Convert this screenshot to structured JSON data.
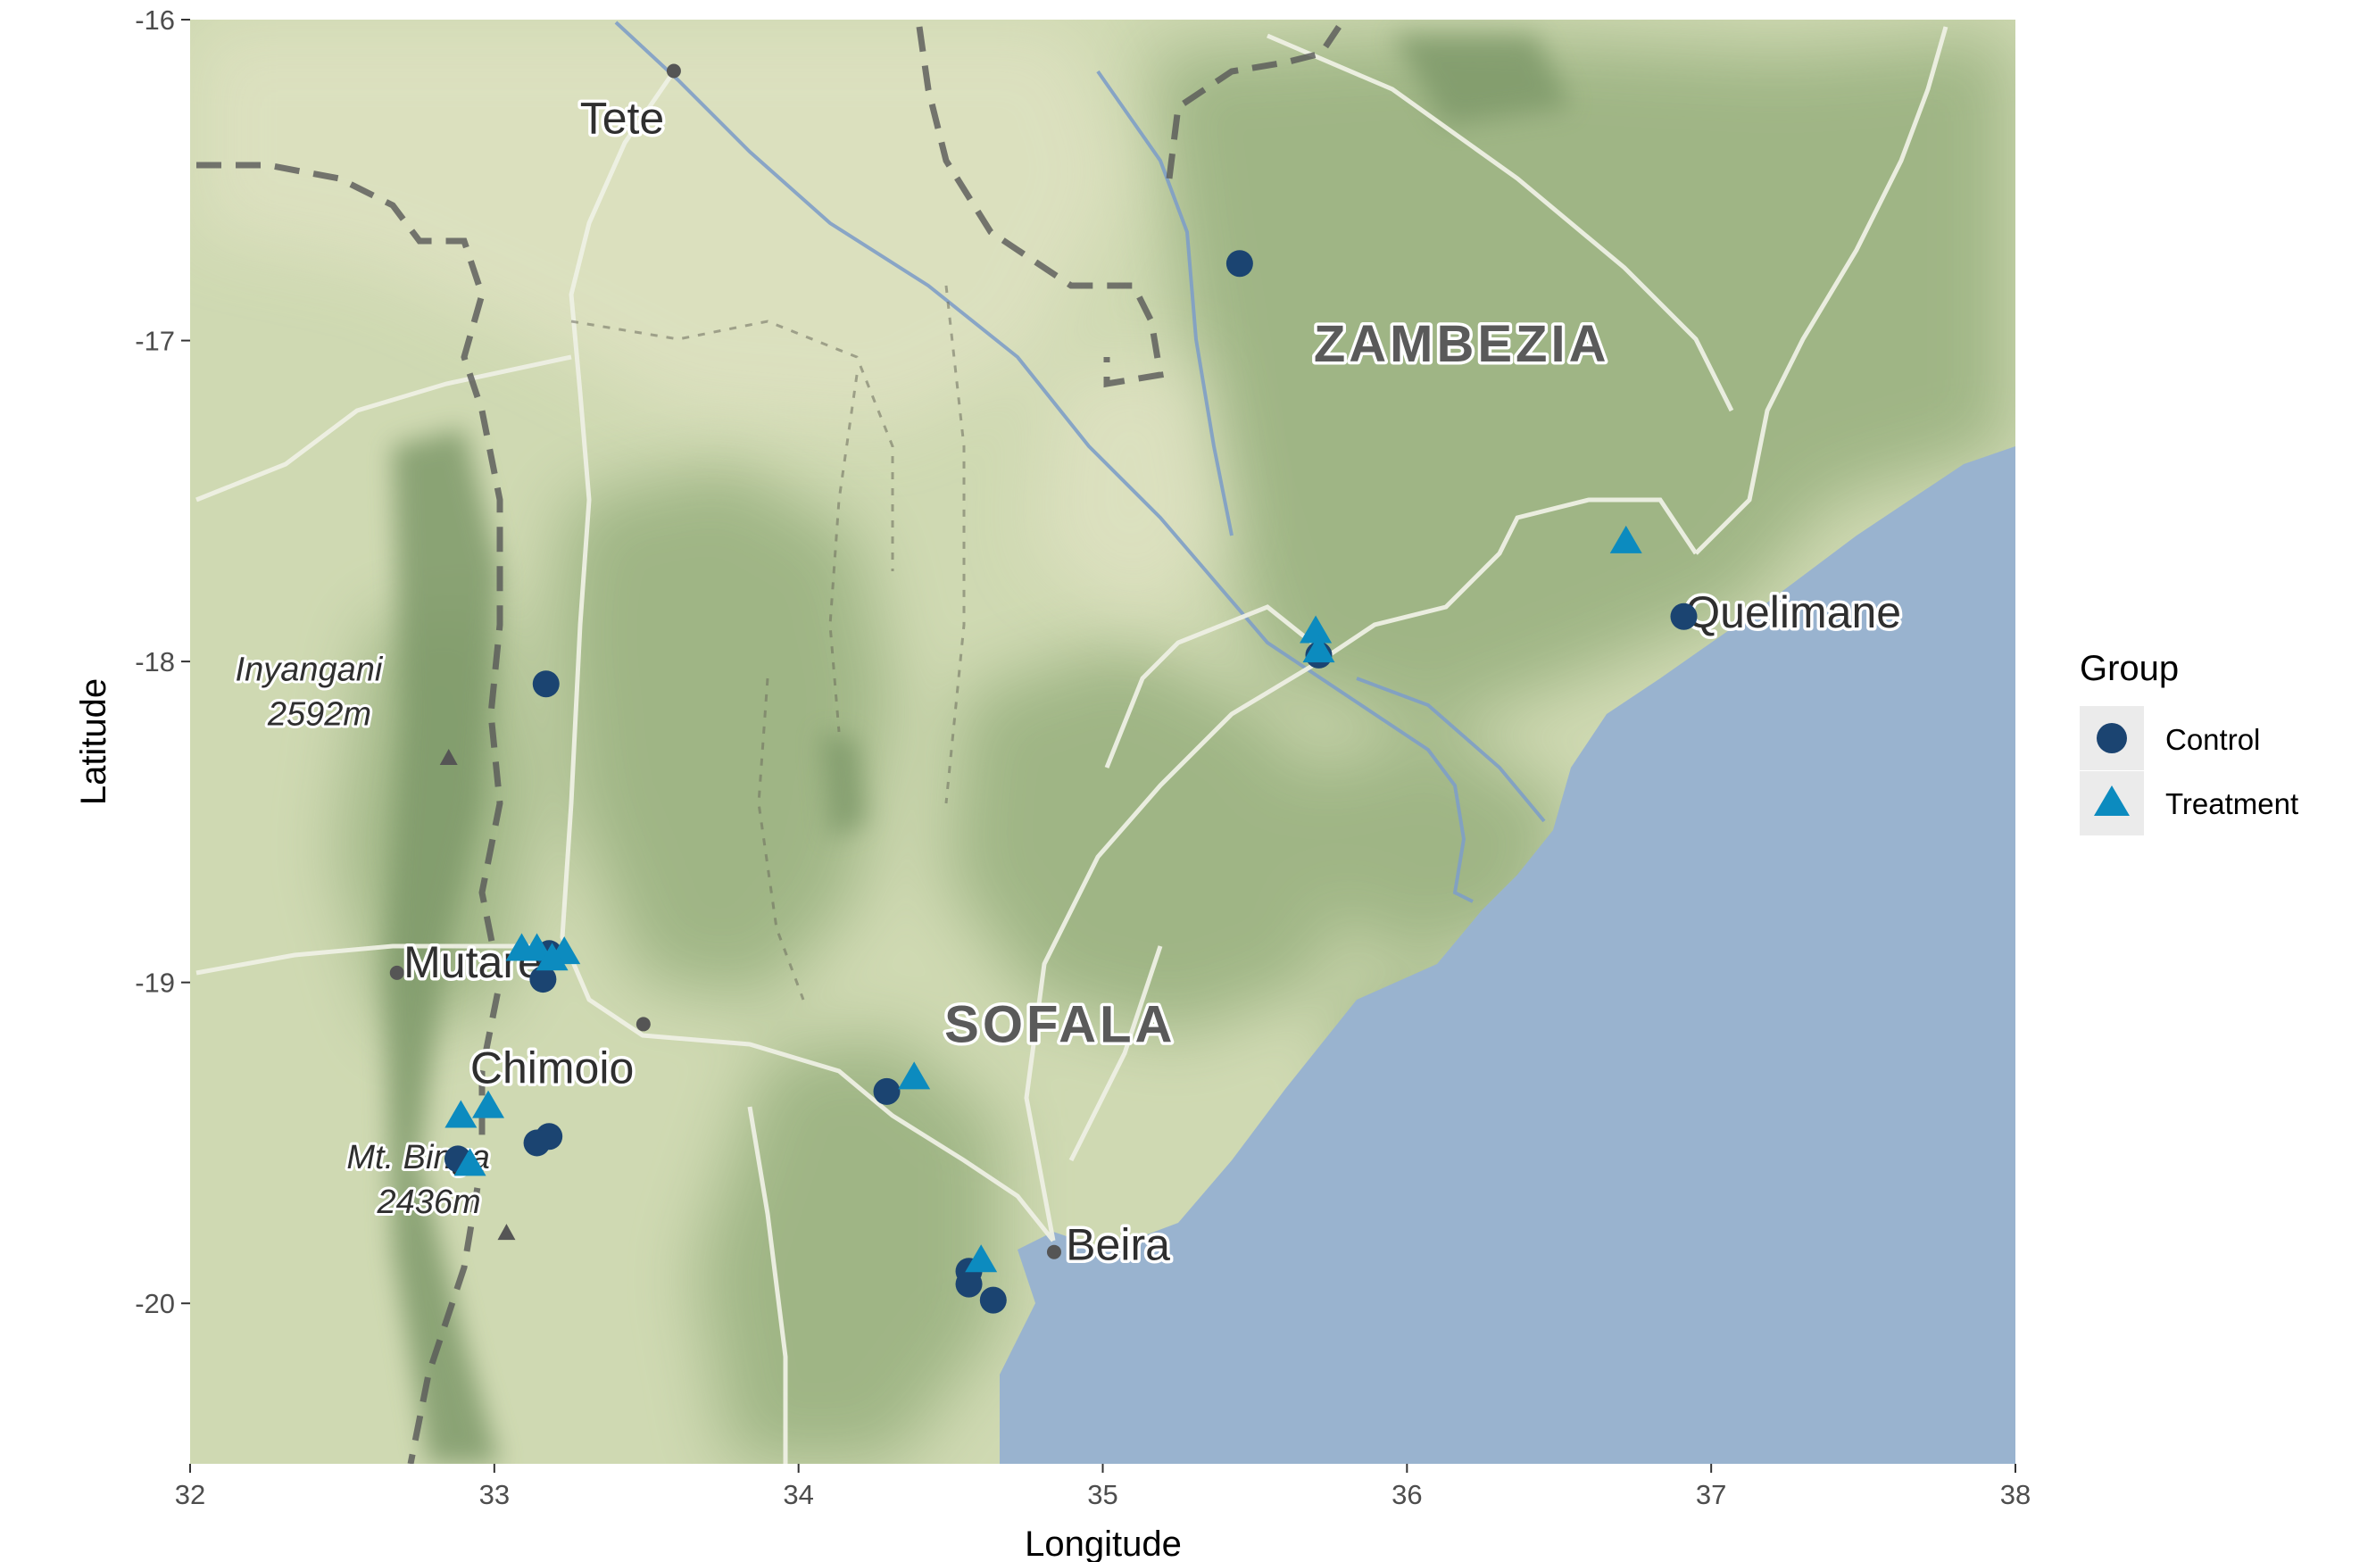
{
  "chart_data": {
    "type": "scatter",
    "title": "",
    "xlabel": "Longitude",
    "ylabel": "Latitude",
    "xlim": [
      32,
      38
    ],
    "ylim": [
      -20.5,
      -16
    ],
    "x_ticks": [
      32,
      33,
      34,
      35,
      36,
      37,
      38
    ],
    "y_ticks": [
      -20,
      -19,
      -18,
      -17,
      -16
    ],
    "x_tick_labels": [
      "32",
      "33",
      "34",
      "35",
      "36",
      "37",
      "38"
    ],
    "y_tick_labels": [
      "-20",
      "-19",
      "-18",
      "-17",
      "-16"
    ],
    "grid": false,
    "legend": {
      "title": "Group",
      "placement": "right",
      "entries": [
        {
          "label": "Control",
          "shape": "circle",
          "color": "#1b4471"
        },
        {
          "label": "Treatment",
          "shape": "triangle",
          "color": "#0c8bbf"
        }
      ]
    },
    "series": [
      {
        "name": "Control",
        "shape": "circle",
        "color": "#1b4471",
        "points": [
          {
            "x": 35.45,
            "y": -16.76
          },
          {
            "x": 33.17,
            "y": -18.07
          },
          {
            "x": 35.71,
            "y": -17.98
          },
          {
            "x": 36.91,
            "y": -17.86
          },
          {
            "x": 33.18,
            "y": -18.91
          },
          {
            "x": 33.16,
            "y": -18.99
          },
          {
            "x": 34.29,
            "y": -19.34
          },
          {
            "x": 33.18,
            "y": -19.48
          },
          {
            "x": 33.14,
            "y": -19.5
          },
          {
            "x": 32.88,
            "y": -19.55
          },
          {
            "x": 34.56,
            "y": -19.9
          },
          {
            "x": 34.56,
            "y": -19.94
          },
          {
            "x": 34.64,
            "y": -19.99
          }
        ]
      },
      {
        "name": "Treatment",
        "shape": "triangle",
        "color": "#0c8bbf",
        "points": [
          {
            "x": 36.72,
            "y": -17.63
          },
          {
            "x": 35.7,
            "y": -17.91
          },
          {
            "x": 35.71,
            "y": -17.97
          },
          {
            "x": 33.09,
            "y": -18.9
          },
          {
            "x": 33.14,
            "y": -18.9
          },
          {
            "x": 33.23,
            "y": -18.91
          },
          {
            "x": 33.19,
            "y": -18.93
          },
          {
            "x": 34.38,
            "y": -19.3
          },
          {
            "x": 32.98,
            "y": -19.39
          },
          {
            "x": 32.89,
            "y": -19.42
          },
          {
            "x": 32.92,
            "y": -19.57
          },
          {
            "x": 34.6,
            "y": -19.87
          }
        ]
      }
    ]
  },
  "map": {
    "place_labels": [
      {
        "text": "Tete",
        "lon": 33.42,
        "lat": -16.31
      },
      {
        "text": "Quelimane",
        "lon": 37.27,
        "lat": -17.85
      },
      {
        "text": "Mutare",
        "lon": 32.93,
        "lat": -18.94
      },
      {
        "text": "Chimoio",
        "lon": 33.19,
        "lat": -19.27
      },
      {
        "text": "Beira",
        "lon": 35.05,
        "lat": -19.82
      }
    ],
    "region_labels": [
      {
        "text": "ZAMBEZIA",
        "lon": 36.18,
        "lat": -17.01
      },
      {
        "text": "SOFALA",
        "lon": 34.86,
        "lat": -19.13
      }
    ],
    "peak_labels": [
      {
        "name": "Inyangani",
        "elevation": "2592m",
        "lon": 32.39,
        "lat": -18.06,
        "marker_lon": 32.85,
        "marker_lat": -18.3
      },
      {
        "name": "Mt. Binga",
        "elevation": "2436m",
        "lon": 32.75,
        "lat": -19.58,
        "marker_lon": 33.04,
        "marker_lat": -19.78
      }
    ],
    "town_dots": [
      {
        "lon": 33.59,
        "lat": -16.16
      },
      {
        "lon": 32.68,
        "lat": -18.97
      },
      {
        "lon": 33.49,
        "lat": -19.13
      },
      {
        "lon": 34.84,
        "lat": -19.84
      }
    ],
    "colors": {
      "land": "#cdd8b0",
      "land_green": "#9fb684",
      "ocean": "#99b3cf",
      "river": "#7f9fc7",
      "road": "#eef0e4",
      "border": "#585858"
    }
  }
}
